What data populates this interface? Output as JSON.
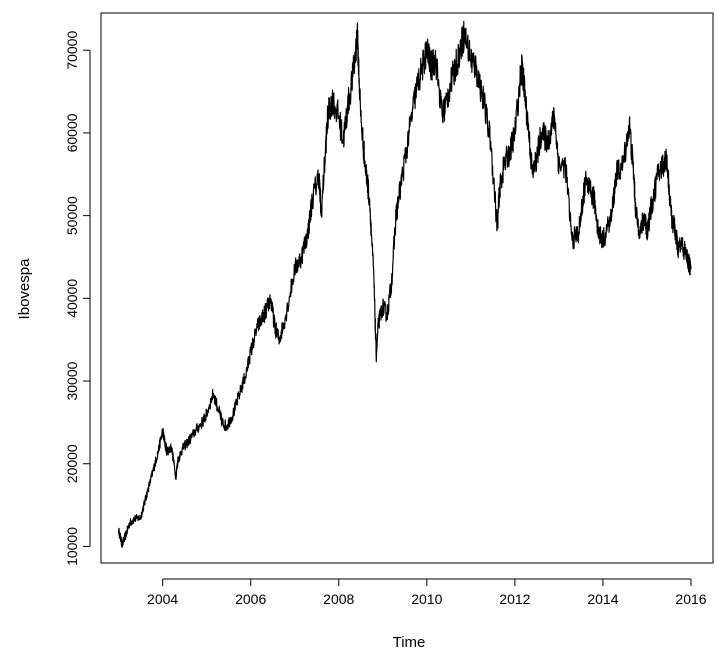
{
  "chart_data": {
    "type": "line",
    "title": "",
    "xlabel": "Time",
    "ylabel": "Ibovespa",
    "xlim": [
      2002.6,
      2016.5
    ],
    "ylim": [
      8000,
      74500
    ],
    "x_ticks": [
      2004,
      2006,
      2008,
      2010,
      2012,
      2014,
      2016
    ],
    "x_tick_labels": [
      "2004",
      "2006",
      "2008",
      "2010",
      "2012",
      "2014",
      "2016"
    ],
    "y_ticks": [
      10000,
      20000,
      30000,
      40000,
      50000,
      60000,
      70000
    ],
    "y_tick_labels": [
      "10000",
      "20000",
      "30000",
      "40000",
      "50000",
      "60000",
      "70000"
    ],
    "grid": false,
    "legend": "none",
    "series_color": "#000000",
    "series": [
      {
        "x": [
          2003.0,
          2003.08,
          2003.17,
          2003.25,
          2003.35,
          2003.5,
          2003.6,
          2003.7,
          2003.8,
          2003.9,
          2004.0,
          2004.05,
          2004.1,
          2004.2,
          2004.3,
          2004.35,
          2004.45,
          2004.6,
          2004.75,
          2004.9,
          2005.0,
          2005.15,
          2005.3,
          2005.35,
          2005.45,
          2005.6,
          2005.75,
          2005.9,
          2006.0,
          2006.15,
          2006.3,
          2006.35,
          2006.45,
          2006.55,
          2006.65,
          2006.8,
          2007.0,
          2007.15,
          2007.3,
          2007.4,
          2007.55,
          2007.6,
          2007.7,
          2007.75,
          2007.85,
          2008.0,
          2008.1,
          2008.2,
          2008.35,
          2008.42,
          2008.5,
          2008.6,
          2008.7,
          2008.8,
          2008.85,
          2008.9,
          2009.0,
          2009.1,
          2009.2,
          2009.3,
          2009.45,
          2009.6,
          2009.75,
          2009.9,
          2010.0,
          2010.1,
          2010.2,
          2010.35,
          2010.45,
          2010.6,
          2010.75,
          2010.85,
          2011.0,
          2011.1,
          2011.25,
          2011.45,
          2011.6,
          2011.65,
          2011.75,
          2011.9,
          2012.0,
          2012.15,
          2012.2,
          2012.3,
          2012.4,
          2012.5,
          2012.6,
          2012.75,
          2012.9,
          2013.0,
          2013.15,
          2013.3,
          2013.45,
          2013.55,
          2013.6,
          2013.7,
          2013.8,
          2013.9,
          2014.0,
          2014.2,
          2014.3,
          2014.45,
          2014.6,
          2014.7,
          2014.75,
          2014.85,
          2014.95,
          2015.0,
          2015.1,
          2015.25,
          2015.35,
          2015.45,
          2015.55,
          2015.65,
          2015.7,
          2015.8,
          2015.9,
          2016.0
        ],
        "values": [
          12000,
          10200,
          11500,
          12800,
          13300,
          13500,
          15500,
          17500,
          19500,
          21500,
          24000,
          22500,
          21500,
          22000,
          18500,
          20500,
          21800,
          22800,
          24000,
          25000,
          26000,
          28500,
          26000,
          25000,
          24500,
          26000,
          28500,
          31000,
          33500,
          36500,
          38000,
          38500,
          40000,
          36500,
          35000,
          38000,
          43500,
          45000,
          48000,
          52000,
          55000,
          50000,
          58000,
          62000,
          64000,
          62000,
          59000,
          63000,
          68000,
          72000,
          62000,
          56000,
          52000,
          42000,
          33000,
          37000,
          39000,
          38000,
          42000,
          50000,
          55000,
          60000,
          65000,
          68000,
          70000,
          68000,
          69000,
          62000,
          64000,
          67000,
          70000,
          72000,
          69000,
          68000,
          65000,
          59000,
          48500,
          53000,
          56000,
          58000,
          60000,
          68000,
          66000,
          61000,
          55000,
          57000,
          60000,
          59000,
          62000,
          56000,
          56000,
          47000,
          48000,
          52000,
          54000,
          53000,
          52000,
          48000,
          47000,
          50000,
          55000,
          56000,
          61000,
          55000,
          50000,
          48000,
          50000,
          48000,
          51000,
          55000,
          56000,
          57000,
          50000,
          48000,
          46000,
          46500,
          45000,
          43500
        ]
      }
    ]
  }
}
